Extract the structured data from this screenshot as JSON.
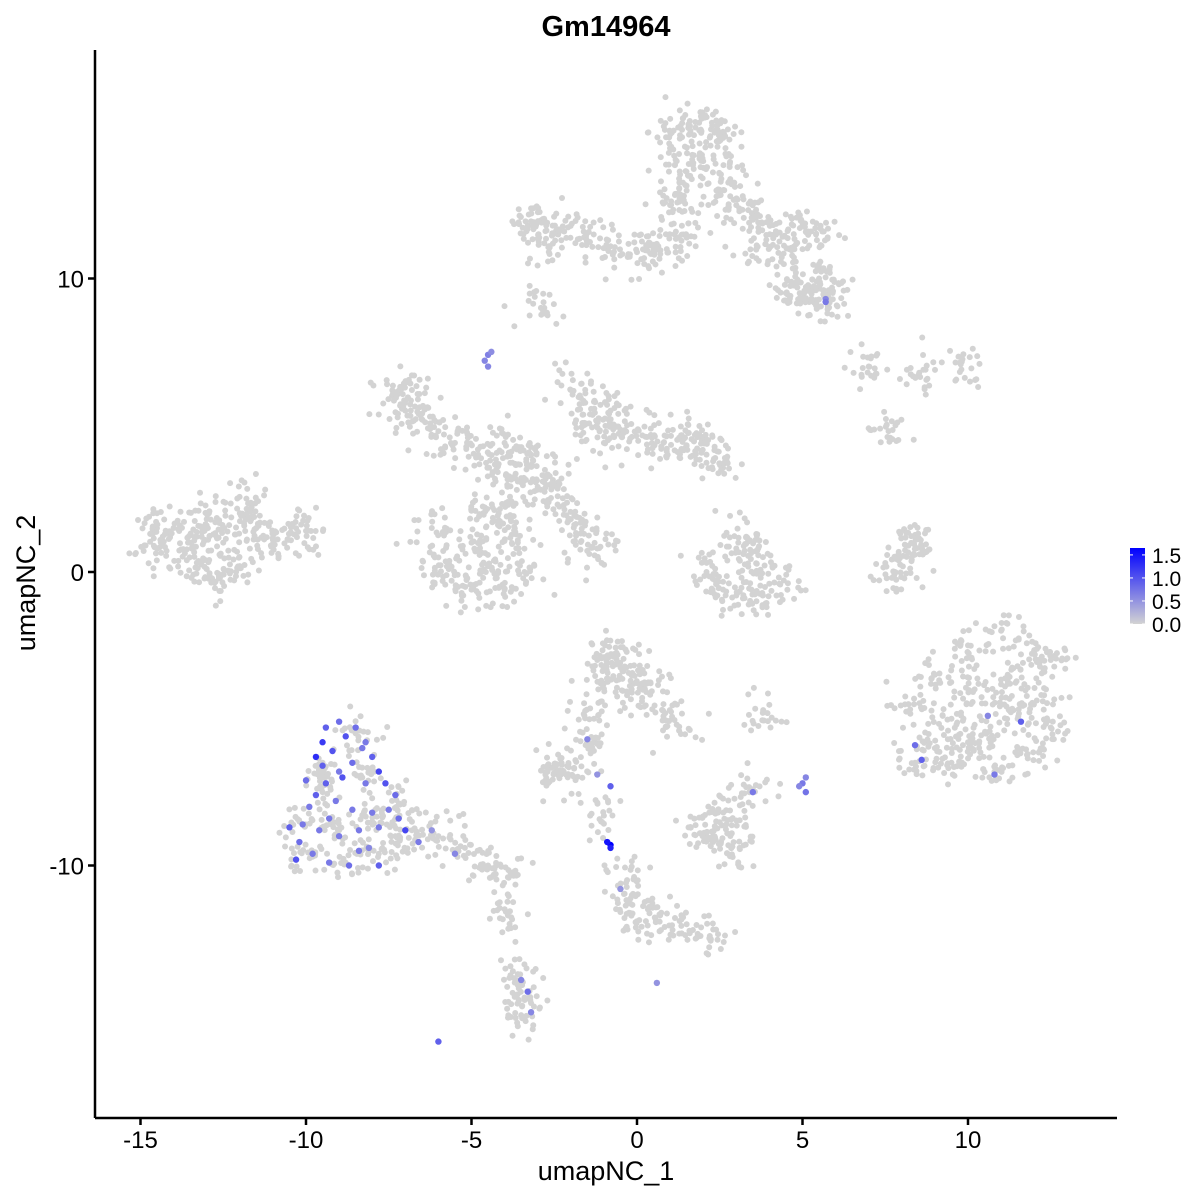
{
  "chart_data": {
    "type": "scatter",
    "title": "Gm14964",
    "xlabel": "umapNC_1",
    "ylabel": "umapNC_2",
    "xlim": [
      -16.5,
      14.5
    ],
    "ylim": [
      -18.3,
      17.9
    ],
    "xticks": [
      -15,
      -10,
      -5,
      0,
      5,
      10
    ],
    "xtick_labels": [
      "-15",
      "-10",
      "-5",
      "0",
      "5",
      "10"
    ],
    "yticks": [
      -10,
      0,
      10
    ],
    "ytick_labels": [
      "-10",
      "0",
      "10"
    ],
    "grid": false,
    "legend": {
      "placement": "right",
      "type": "colorbar",
      "ticks": [
        0.0,
        0.5,
        1.0,
        1.5
      ],
      "tick_labels": [
        "0.0",
        "0.5",
        "1.0",
        "1.5"
      ],
      "range": [
        0,
        1.65
      ],
      "low_color": "#D3D3D3",
      "high_color": "#0000FF"
    },
    "background_point_color": "#D3D3D3",
    "background_points": [
      [
        -14.5,
        0.8
      ],
      [
        -14,
        1.5
      ],
      [
        -13.6,
        0.4
      ],
      [
        -13,
        1.8
      ],
      [
        -12.5,
        1.0
      ],
      [
        -12,
        2.0
      ],
      [
        -11.5,
        1.5
      ],
      [
        -11,
        1.1
      ],
      [
        -10.5,
        1.3
      ],
      [
        -12,
        0.2
      ],
      [
        -13,
        0.1
      ],
      [
        -11.8,
        2.5
      ],
      [
        -12.6,
        -0.2
      ],
      [
        -10,
        1.4
      ],
      [
        -14.7,
        1.3
      ],
      [
        -13.3,
        1.2
      ],
      [
        1.0,
        15.0
      ],
      [
        1.6,
        15.2
      ],
      [
        2.2,
        14.8
      ],
      [
        1.2,
        14.0
      ],
      [
        2.0,
        14.0
      ],
      [
        2.8,
        13.8
      ],
      [
        1.5,
        13.0
      ],
      [
        2.4,
        13.0
      ],
      [
        1.0,
        12.5
      ],
      [
        3.0,
        12.5
      ],
      [
        3.5,
        12.0
      ],
      [
        4.2,
        11.5
      ],
      [
        5.0,
        11.8
      ],
      [
        5.6,
        11.6
      ],
      [
        4.6,
        11.0
      ],
      [
        3.6,
        11.0
      ],
      [
        4.8,
        10.2
      ],
      [
        5.5,
        10.0
      ],
      [
        4.5,
        9.5
      ],
      [
        5.2,
        9.2
      ],
      [
        5.8,
        9.6
      ],
      [
        0.9,
        11.0
      ],
      [
        1.4,
        11.5
      ],
      [
        2.6,
        15.0
      ],
      [
        -3.3,
        11.8
      ],
      [
        -2.8,
        12.0
      ],
      [
        -2.2,
        11.6
      ],
      [
        -2.8,
        11.2
      ],
      [
        -1.6,
        11.4
      ],
      [
        -0.8,
        11.1
      ],
      [
        0.0,
        10.9
      ],
      [
        0.5,
        11.0
      ],
      [
        -2.8,
        9.0
      ],
      [
        -7.4,
        6.0
      ],
      [
        -7.0,
        5.5
      ],
      [
        -6.5,
        5.2
      ],
      [
        -6.0,
        4.8
      ],
      [
        -5.5,
        4.4
      ],
      [
        -6.8,
        6.2
      ],
      [
        -4.8,
        4.0
      ],
      [
        -4.2,
        3.6
      ],
      [
        -3.5,
        3.2
      ],
      [
        -3.0,
        2.9
      ],
      [
        -2.6,
        3.0
      ],
      [
        -4.0,
        4.4
      ],
      [
        -3.2,
        4.0
      ],
      [
        -2.0,
        6.2
      ],
      [
        -1.3,
        5.8
      ],
      [
        -0.8,
        5.5
      ],
      [
        -0.3,
        5.0
      ],
      [
        -1.6,
        5.0
      ],
      [
        -1.0,
        4.4
      ],
      [
        0.3,
        4.6
      ],
      [
        0.9,
        4.2
      ],
      [
        1.5,
        4.3
      ],
      [
        2.1,
        4.0
      ],
      [
        2.5,
        3.7
      ],
      [
        1.8,
        4.7
      ],
      [
        -6.2,
        1.5
      ],
      [
        -6.0,
        0.5
      ],
      [
        -5.6,
        -0.3
      ],
      [
        -5.0,
        1.0
      ],
      [
        -4.5,
        0.2
      ],
      [
        -4.2,
        1.6
      ],
      [
        -3.6,
        1.0
      ],
      [
        -3.4,
        0.0
      ],
      [
        -4.0,
        -0.6
      ],
      [
        -5.0,
        -0.6
      ],
      [
        -4.6,
        2.2
      ],
      [
        -3.8,
        2.4
      ],
      [
        -2.4,
        2.3
      ],
      [
        -2.0,
        1.8
      ],
      [
        -1.6,
        1.3
      ],
      [
        -1.2,
        0.8
      ],
      [
        2.1,
        0.0
      ],
      [
        2.6,
        -0.6
      ],
      [
        3.2,
        -0.9
      ],
      [
        3.8,
        -0.8
      ],
      [
        4.3,
        -0.4
      ],
      [
        3.0,
        0.8
      ],
      [
        3.3,
        1.2
      ],
      [
        3.6,
        0.3
      ],
      [
        7.7,
        -0.2
      ],
      [
        7.9,
        0.4
      ],
      [
        8.2,
        0.9
      ],
      [
        8.4,
        1.2
      ],
      [
        7.0,
        7.0
      ],
      [
        8.5,
        6.7
      ],
      [
        9.8,
        6.9
      ],
      [
        7.6,
        4.8
      ],
      [
        8.2,
        -4.5
      ],
      [
        8.4,
        -6.5
      ],
      [
        9.0,
        -3.5
      ],
      [
        9.5,
        -5.0
      ],
      [
        9.5,
        -6.5
      ],
      [
        10.0,
        -2.5
      ],
      [
        10.2,
        -4.0
      ],
      [
        10.5,
        -5.5
      ],
      [
        10.8,
        -6.8
      ],
      [
        11.0,
        -2.0
      ],
      [
        11.2,
        -3.5
      ],
      [
        11.5,
        -5.0
      ],
      [
        11.8,
        -6.2
      ],
      [
        12.0,
        -2.8
      ],
      [
        12.3,
        -4.2
      ],
      [
        12.5,
        -5.3
      ],
      [
        11.0,
        -4.5
      ],
      [
        9.0,
        -6.0
      ],
      [
        12.5,
        -3.0
      ],
      [
        10.0,
        -5.8
      ],
      [
        -10.2,
        -8.5
      ],
      [
        -9.8,
        -9.7
      ],
      [
        -9.5,
        -7.5
      ],
      [
        -9.0,
        -8.8
      ],
      [
        -8.8,
        -9.9
      ],
      [
        -8.3,
        -7.0
      ],
      [
        -8.0,
        -8.5
      ],
      [
        -7.8,
        -9.6
      ],
      [
        -7.4,
        -7.8
      ],
      [
        -7.3,
        -9.0
      ],
      [
        -9.5,
        -6.5
      ],
      [
        -8.5,
        -5.5
      ],
      [
        -6.8,
        -8.8
      ],
      [
        -6.0,
        -9.0
      ],
      [
        -5.2,
        -9.4
      ],
      [
        -4.5,
        -10.0
      ],
      [
        -3.9,
        -10.4
      ],
      [
        -1.2,
        -3.0
      ],
      [
        -0.7,
        -2.8
      ],
      [
        -0.2,
        -3.2
      ],
      [
        0.3,
        -3.8
      ],
      [
        -1.0,
        -3.8
      ],
      [
        -0.3,
        -4.2
      ],
      [
        0.8,
        -4.5
      ],
      [
        1.2,
        -5.2
      ],
      [
        -1.3,
        -5.0
      ],
      [
        -1.5,
        -5.8
      ],
      [
        -2.7,
        -6.8
      ],
      [
        -2.3,
        -6.9
      ],
      [
        -1.9,
        -6.7
      ],
      [
        1.9,
        -8.9
      ],
      [
        2.3,
        -9.2
      ],
      [
        2.7,
        -8.6
      ],
      [
        3.1,
        -9.4
      ],
      [
        2.4,
        -8.2
      ],
      [
        3.5,
        -7.4
      ],
      [
        -0.3,
        -10.5
      ],
      [
        -0.2,
        -11.3
      ],
      [
        0.0,
        -11.9
      ],
      [
        0.7,
        -11.7
      ],
      [
        1.5,
        -12.0
      ],
      [
        2.2,
        -12.4
      ],
      [
        -1.0,
        -8.3
      ],
      [
        -3.6,
        -13.7
      ],
      [
        -3.4,
        -14.5
      ],
      [
        -3.5,
        -15.1
      ],
      [
        -3.9,
        -11.7
      ],
      [
        5.7,
        9.3
      ],
      [
        3.8,
        -4.8
      ]
    ],
    "expressed_points": [
      [
        -4.5,
        7.4,
        0.65
      ],
      [
        -4.6,
        7.2,
        0.6
      ],
      [
        -4.4,
        7.5,
        0.55
      ],
      [
        -4.5,
        7.0,
        0.6
      ],
      [
        5.0,
        -7.2,
        0.7
      ],
      [
        5.1,
        -7.5,
        0.75
      ],
      [
        4.9,
        -7.3,
        0.6
      ],
      [
        5.1,
        -7.0,
        0.6
      ],
      [
        -0.8,
        -9.3,
        1.65
      ],
      [
        -0.9,
        -9.2,
        1.5
      ],
      [
        -0.8,
        -9.4,
        1.4
      ],
      [
        -6.0,
        -16.0,
        0.9
      ],
      [
        0.6,
        -14.0,
        0.5
      ],
      [
        5.7,
        9.3,
        0.6
      ],
      [
        -1.5,
        -5.7,
        0.6
      ],
      [
        -1.2,
        -6.9,
        0.5
      ],
      [
        -0.8,
        -7.3,
        0.9
      ],
      [
        -0.5,
        -10.8,
        0.5
      ],
      [
        3.5,
        -7.5,
        0.7
      ],
      [
        -3.3,
        -14.3,
        0.8
      ],
      [
        -3.5,
        -13.9,
        0.6
      ],
      [
        -3.2,
        -15.0,
        0.6
      ],
      [
        8.4,
        -5.9,
        0.8
      ],
      [
        8.6,
        -6.4,
        0.9
      ],
      [
        10.6,
        -4.9,
        0.6
      ],
      [
        11.6,
        -5.1,
        0.9
      ],
      [
        10.8,
        -6.9,
        0.7
      ],
      [
        5.7,
        9.2,
        0.7
      ],
      [
        -9.4,
        -5.3,
        0.9
      ],
      [
        -9.0,
        -5.1,
        0.8
      ],
      [
        -9.5,
        -5.8,
        1.2
      ],
      [
        -9.2,
        -6.1,
        1.0
      ],
      [
        -8.8,
        -5.6,
        1.0
      ],
      [
        -8.5,
        -5.3,
        0.8
      ],
      [
        -8.2,
        -5.8,
        0.7
      ],
      [
        -8.0,
        -6.3,
        0.9
      ],
      [
        -7.8,
        -6.8,
        1.1
      ],
      [
        -9.5,
        -6.6,
        0.9
      ],
      [
        -9.0,
        -6.8,
        0.7
      ],
      [
        -8.6,
        -6.5,
        0.8
      ],
      [
        -8.2,
        -7.2,
        0.7
      ],
      [
        -7.6,
        -7.2,
        1.0
      ],
      [
        -7.3,
        -7.6,
        0.8
      ],
      [
        -10.0,
        -7.1,
        0.8
      ],
      [
        -9.7,
        -7.6,
        0.9
      ],
      [
        -9.4,
        -7.2,
        0.9
      ],
      [
        -9.9,
        -8.0,
        0.7
      ],
      [
        -9.1,
        -7.8,
        0.7
      ],
      [
        -8.6,
        -8.1,
        0.7
      ],
      [
        -8.0,
        -8.2,
        0.7
      ],
      [
        -7.5,
        -8.1,
        0.7
      ],
      [
        -10.5,
        -8.7,
        0.9
      ],
      [
        -10.2,
        -9.2,
        0.8
      ],
      [
        -9.6,
        -8.8,
        0.7
      ],
      [
        -9.0,
        -9.0,
        0.7
      ],
      [
        -8.4,
        -8.8,
        0.7
      ],
      [
        -7.8,
        -8.7,
        0.7
      ],
      [
        -7.2,
        -8.4,
        0.8
      ],
      [
        -7.0,
        -8.8,
        1.1
      ],
      [
        -10.3,
        -9.8,
        1.0
      ],
      [
        -9.8,
        -9.6,
        0.7
      ],
      [
        -9.3,
        -9.9,
        0.7
      ],
      [
        -8.7,
        -10.0,
        0.8
      ],
      [
        -7.8,
        -10.0,
        0.9
      ],
      [
        -8.4,
        -9.5,
        0.7
      ],
      [
        -6.6,
        -9.2,
        0.7
      ],
      [
        -5.5,
        -9.6,
        0.6
      ],
      [
        -6.2,
        -8.8,
        0.5
      ],
      [
        -9.7,
        -6.3,
        1.3
      ],
      [
        -8.9,
        -7.0,
        1.0
      ],
      [
        -8.3,
        -6.0,
        0.7
      ],
      [
        -10.1,
        -8.6,
        0.7
      ],
      [
        -9.3,
        -8.4,
        0.7
      ],
      [
        -8.1,
        -9.4,
        0.6
      ]
    ]
  }
}
